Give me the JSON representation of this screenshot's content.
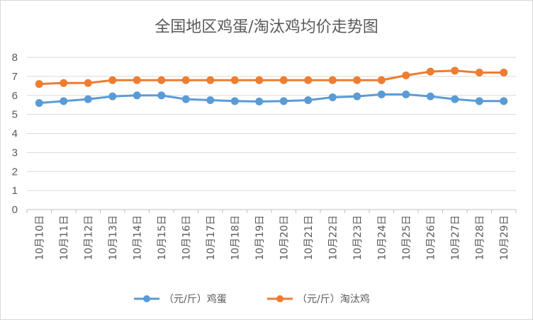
{
  "chart_data": {
    "type": "line",
    "title": "全国地区鸡蛋/淘汰鸡均价走势图",
    "xlabel": "",
    "ylabel": "",
    "ylim": [
      0,
      8
    ],
    "yticks": [
      "0",
      "1",
      "2",
      "3",
      "4",
      "5",
      "6",
      "7",
      "8"
    ],
    "grid": true,
    "legend_position": "bottom",
    "categories": [
      "10月10日",
      "10月11日",
      "10月12日",
      "10月13日",
      "10月14日",
      "10月15日",
      "10月16日",
      "10月17日",
      "10月18日",
      "10月19日",
      "10月20日",
      "10月21日",
      "10月22日",
      "10月23日",
      "10月24日",
      "10月25日",
      "10月26日",
      "10月27日",
      "10月28日",
      "10月29日"
    ],
    "series": [
      {
        "name": "（元/斤）鸡蛋",
        "color": "#5b9bd5",
        "values": [
          5.6,
          5.7,
          5.8,
          5.95,
          6.0,
          6.0,
          5.8,
          5.75,
          5.7,
          5.68,
          5.7,
          5.75,
          5.9,
          5.95,
          6.05,
          6.05,
          5.95,
          5.8,
          5.7,
          5.7
        ]
      },
      {
        "name": "（元/斤）淘汰鸡",
        "color": "#ed7d31",
        "values": [
          6.6,
          6.65,
          6.65,
          6.8,
          6.8,
          6.8,
          6.8,
          6.8,
          6.8,
          6.8,
          6.8,
          6.8,
          6.8,
          6.8,
          6.8,
          7.05,
          7.25,
          7.3,
          7.2,
          7.2
        ]
      }
    ]
  }
}
